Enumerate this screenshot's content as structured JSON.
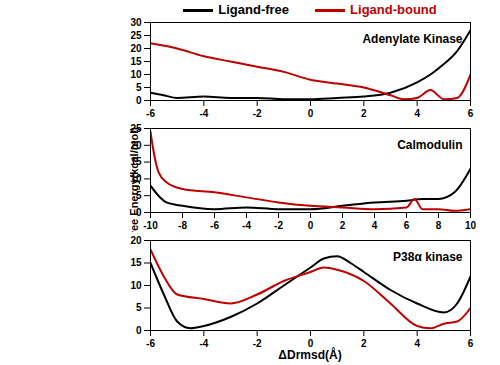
{
  "chart_data": [
    {
      "type": "line",
      "title": "Adenylate Kinase",
      "legend": "top",
      "xlim": [
        -6,
        6
      ],
      "xticks": [
        -6,
        -4,
        -2,
        0,
        2,
        4,
        6
      ],
      "ylim": [
        0,
        30
      ],
      "yticks": [
        0,
        5,
        10,
        15,
        20,
        25,
        30
      ],
      "series": [
        {
          "name": "Ligand-free",
          "color": "#000000",
          "x": [
            -6,
            -5.5,
            -5,
            -4,
            -3,
            -2,
            -1,
            0,
            1,
            2,
            3,
            4,
            4.5,
            5,
            5.5,
            6
          ],
          "values": [
            3,
            2,
            1,
            1.5,
            1,
            1,
            0.5,
            0.5,
            1,
            1.5,
            3,
            7,
            10,
            14,
            19,
            27
          ]
        },
        {
          "name": "Ligand-bound",
          "color": "#c00000",
          "x": [
            -6,
            -5,
            -4,
            -3,
            -2,
            -1,
            0,
            1,
            2,
            3,
            3.5,
            4,
            4.5,
            5,
            5.5,
            6
          ],
          "values": [
            22,
            20,
            17,
            15,
            13,
            11,
            8,
            6.5,
            5,
            2,
            0.5,
            1,
            4,
            0.5,
            1,
            10
          ]
        }
      ]
    },
    {
      "type": "line",
      "title": "Calmodulin",
      "y_label": "Free Energy(kcal/mol)",
      "xlim": [
        -10,
        10
      ],
      "xticks": [
        -10,
        -8,
        -6,
        -4,
        -2,
        0,
        2,
        4,
        6,
        8,
        10
      ],
      "ylim": [
        0,
        25
      ],
      "yticks": [
        0,
        5,
        10,
        15,
        20,
        25
      ],
      "series": [
        {
          "name": "Ligand-free",
          "color": "#000000",
          "x": [
            -10,
            -9.5,
            -9,
            -8,
            -6,
            -4,
            -2,
            0,
            2,
            4,
            6,
            7,
            8,
            9,
            10
          ],
          "values": [
            8,
            5,
            3,
            2,
            1,
            1.5,
            1,
            1,
            2,
            3,
            3.5,
            4,
            4,
            6,
            13
          ]
        },
        {
          "name": "Ligand-bound",
          "color": "#c00000",
          "x": [
            -10,
            -9.8,
            -9.5,
            -9,
            -8,
            -6,
            -4,
            -2,
            0,
            2,
            4,
            6,
            6.5,
            7,
            8,
            9,
            10
          ],
          "values": [
            24,
            18,
            12,
            9,
            7,
            6,
            4.5,
            3,
            2,
            1.5,
            1,
            1.5,
            4,
            1,
            1,
            0.5,
            1
          ]
        }
      ]
    },
    {
      "type": "line",
      "title": "P38α kinase",
      "x_label": "ΔDrmsd(Å)",
      "xlim": [
        -6,
        6
      ],
      "xticks": [
        -6,
        -4,
        -2,
        0,
        2,
        4,
        6
      ],
      "ylim": [
        0,
        20
      ],
      "yticks": [
        0,
        5,
        10,
        15,
        20
      ],
      "series": [
        {
          "name": "Ligand-free",
          "color": "#000000",
          "x": [
            -6,
            -5.5,
            -5,
            -4.5,
            -4,
            -3,
            -2,
            -1,
            0,
            0.5,
            1,
            1.5,
            2,
            3,
            4,
            5,
            5.5,
            6
          ],
          "values": [
            15,
            8,
            2,
            0.5,
            1,
            3,
            6,
            10,
            14,
            16,
            16.5,
            15,
            13,
            9,
            6,
            4,
            6,
            12
          ]
        },
        {
          "name": "Ligand-bound",
          "color": "#c00000",
          "x": [
            -6,
            -5.5,
            -5,
            -4,
            -3,
            -2,
            -1,
            0,
            0.5,
            1,
            2,
            3,
            4,
            4.5,
            5,
            5.5,
            6
          ],
          "values": [
            18,
            12,
            8,
            7,
            6,
            8,
            11,
            13,
            14,
            13.5,
            11,
            6,
            1,
            0.5,
            1.5,
            2,
            5
          ]
        }
      ]
    }
  ]
}
